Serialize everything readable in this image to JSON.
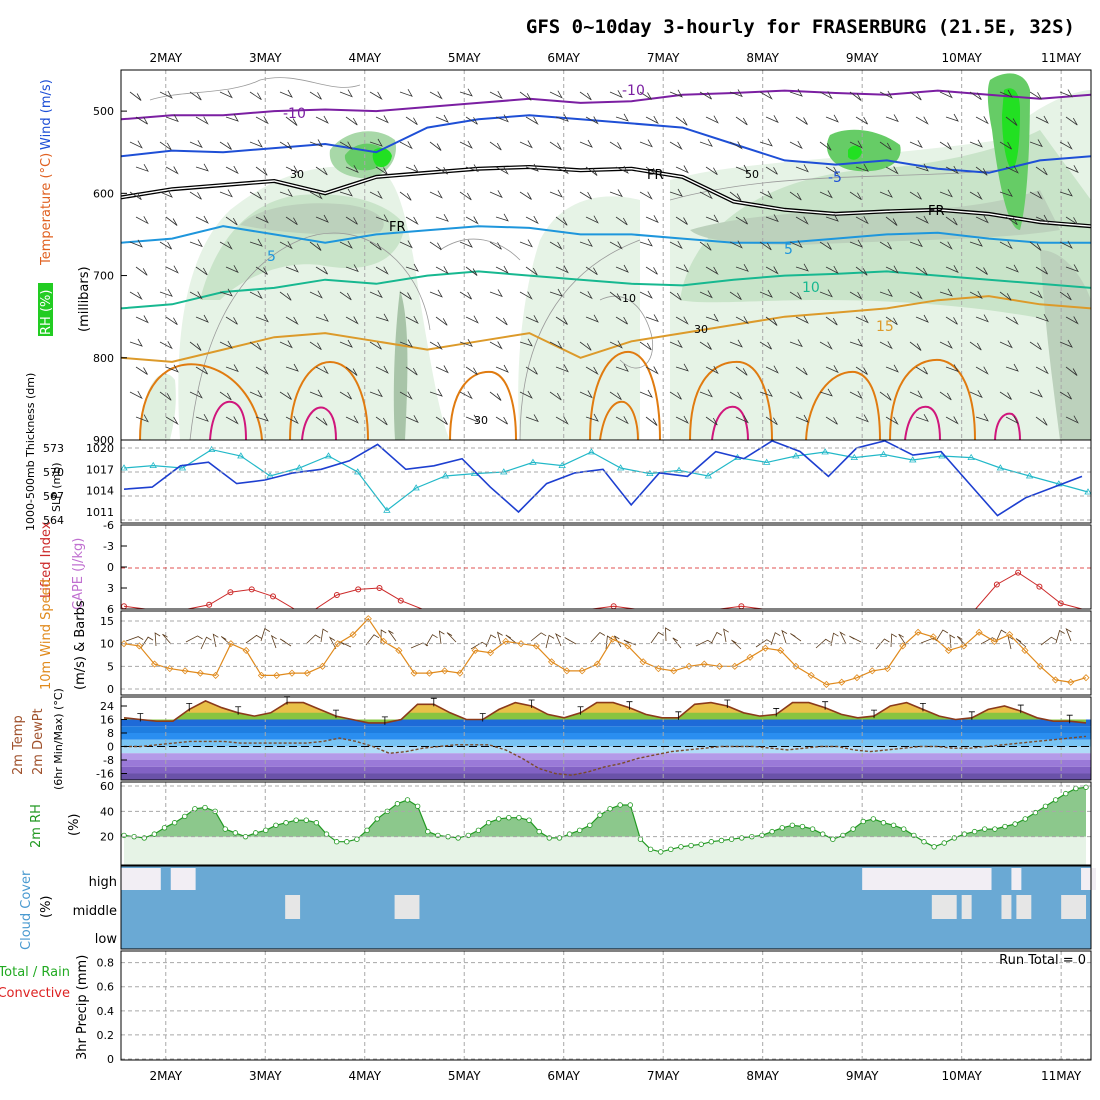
{
  "title": "GFS 0~10day 3-hourly for FRASERBURG (21.5E, 32S)",
  "colors": {
    "temp_neg10": "#7b1fa2",
    "temp_neg5": "#1e4fd6",
    "freezing": "#000000",
    "temp_5": "#1e96dc",
    "temp_10": "#17b890",
    "temp_15": "#dc9a2a",
    "temp_20": "#e07b10",
    "temp_25": "#d0167c",
    "rh_light": "#e6f3e6",
    "rh_mid": "#a8d8a8",
    "rh_dark": "#22cc22",
    "thickness": "#22b8c8",
    "slp": "#1d3fd0",
    "cape": "#cc2a2a",
    "wind": "#e08a1c",
    "cloud": "#6aa9d4",
    "rh2m": "#229922"
  },
  "chart_data": {
    "type": "meteogram",
    "title": "GFS 0~10day 3-hourly for FRASERBURG (21.5E, 32S)",
    "xaxis": {
      "day_labels": [
        "2MAY",
        "3MAY",
        "4MAY",
        "5MAY",
        "6MAY",
        "7MAY",
        "8MAY",
        "9MAY",
        "10MAY",
        "11MAY"
      ],
      "xlim_days": [
        0.55,
        10.3
      ],
      "tick_days": [
        1,
        2,
        3,
        4,
        5,
        6,
        7,
        8,
        9,
        10
      ]
    },
    "panels": [
      {
        "id": "upper-air",
        "ylabel_parts": [
          "RH (%)",
          "Temperature (°C)",
          "Wind (m/s)",
          "(millibars)"
        ],
        "ylim_mb": [
          900,
          450
        ],
        "yticks": [
          "500",
          "600",
          "700",
          "800",
          "900"
        ],
        "contour_labels": [
          "-10",
          "-10",
          "-5",
          "FR",
          "FR",
          "FR",
          "5",
          "5",
          "10",
          "15"
        ],
        "rh_labels": [
          "30",
          "50",
          "10",
          "30",
          "30"
        ],
        "isotherms": [
          {
            "label": "-10",
            "mb": [
              510,
              505,
              505,
              500,
              498,
              500,
              495,
              490,
              485,
              490,
              488,
              480,
              478,
              475,
              478,
              480,
              475,
              480,
              485,
              480
            ]
          },
          {
            "label": "-5",
            "mb": [
              555,
              548,
              550,
              545,
              540,
              550,
              520,
              510,
              505,
              510,
              515,
              520,
              540,
              560,
              565,
              560,
              570,
              575,
              560,
              555
            ]
          },
          {
            "label": "FR",
            "mb": [
              605,
              595,
              590,
              585,
              600,
              580,
              575,
              570,
              568,
              572,
              570,
              580,
              610,
              620,
              625,
              622,
              620,
              625,
              635,
              640
            ]
          },
          {
            "label": "5",
            "mb": [
              660,
              655,
              640,
              650,
              660,
              650,
              645,
              640,
              642,
              650,
              650,
              655,
              660,
              660,
              655,
              650,
              648,
              655,
              660,
              660
            ]
          },
          {
            "label": "10",
            "mb": [
              740,
              735,
              720,
              715,
              705,
              710,
              700,
              695,
              700,
              705,
              710,
              712,
              705,
              700,
              698,
              695,
              700,
              705,
              710,
              715
            ]
          },
          {
            "label": "15",
            "mb": [
              800,
              805,
              790,
              775,
              770,
              780,
              790,
              780,
              770,
              800,
              780,
              770,
              760,
              750,
              745,
              740,
              730,
              725,
              735,
              740
            ]
          }
        ]
      },
      {
        "id": "thickness-slp",
        "ylabel_parts": [
          "1000-500mb Thickness (dm)",
          "SLP (mb)"
        ],
        "left_ticks": [
          "573",
          "570",
          "567",
          "564"
        ],
        "right_ticks": [
          "1020",
          "1017",
          "1014",
          "1011"
        ],
        "series": [
          {
            "name": "1000-500mb Thickness (dm)",
            "values": [
              570.5,
              570.8,
              570.5,
              572.8,
              572.0,
              569.5,
              570.5,
              572.0,
              570.0,
              565.2,
              568.0,
              569.5,
              569.8,
              570.0,
              571.2,
              570.8,
              572.5,
              570.5,
              569.8,
              570.2,
              569.5,
              571.8,
              571.2,
              572.0,
              572.5,
              571.8,
              572.2,
              571.5,
              572.0,
              571.8,
              570.5,
              569.5,
              568.5,
              567.5
            ]
          },
          {
            "name": "SLP (mb)",
            "values": [
              1014.2,
              1014.5,
              1017.5,
              1018.0,
              1015.0,
              1015.5,
              1016.5,
              1017.0,
              1018.2,
              1020.5,
              1017.0,
              1017.5,
              1018.5,
              1014.5,
              1011.0,
              1015.0,
              1016.5,
              1017.0,
              1012.0,
              1016.5,
              1016.0,
              1019.5,
              1018.5,
              1021.0,
              1019.5,
              1016.0,
              1020.0,
              1021.0,
              1019.0,
              1019.5,
              1015.0,
              1010.5,
              1013.0,
              1014.5,
              1016.0
            ]
          }
        ]
      },
      {
        "id": "cape-li",
        "ylabel_parts": [
          "Lifted Index",
          "CAPE (J/kg)"
        ],
        "yticks": [
          "-6",
          "-3",
          "0",
          "3",
          "6"
        ],
        "series": [
          {
            "name": "Lifted Index",
            "values": [
              5.6,
              6.0,
              6.0,
              6.0,
              5.4,
              3.6,
              3.2,
              4.2,
              6.0,
              6.0,
              4.0,
              3.2,
              3.0,
              4.8,
              6.0,
              6.0,
              6.0,
              6.0,
              6.0,
              6.0,
              6.0,
              6.0,
              6.0,
              5.6,
              6.0,
              6.0,
              6.0,
              6.0,
              6.0,
              5.6,
              6.0,
              6.0,
              6.0,
              6.0,
              6.0,
              6.0,
              6.0,
              6.0,
              6.0,
              6.0,
              6.0,
              2.5,
              0.8,
              2.8,
              5.2,
              6.0
            ]
          }
        ]
      },
      {
        "id": "wind10m",
        "ylabel_parts": [
          "10m Wind Speed",
          "(m/s) & Barbs"
        ],
        "yticks": [
          "15",
          "10",
          "5",
          "0"
        ],
        "series": [
          {
            "name": "10m Wind Speed",
            "values": [
              10.0,
              9.5,
              5.5,
              4.5,
              4.0,
              3.5,
              3.0,
              10.0,
              8.5,
              3.0,
              3.0,
              3.5,
              3.5,
              5.0,
              10.0,
              12.0,
              15.5,
              10.5,
              8.5,
              3.5,
              3.5,
              4.0,
              3.5,
              8.5,
              8.0,
              10.5,
              10.0,
              9.5,
              6.0,
              4.0,
              4.0,
              5.5,
              11.0,
              9.5,
              6.0,
              4.5,
              4.0,
              5.0,
              5.5,
              5.0,
              5.0,
              7.0,
              9.0,
              8.5,
              5.0,
              3.0,
              1.0,
              1.5,
              2.5,
              4.0,
              4.5,
              9.5,
              12.5,
              11.5,
              8.5,
              9.5,
              12.5,
              10.5,
              12.0,
              8.5,
              5.0,
              2.0,
              1.5,
              2.5
            ]
          }
        ]
      },
      {
        "id": "temp2m",
        "ylabel_parts": [
          "2m Temp",
          "2m DewPt",
          "(6hr Min/Max) (°C)"
        ],
        "yticks": [
          "24",
          "16",
          "8",
          "0",
          "-8",
          "-16"
        ],
        "series": [
          {
            "name": "2m Temp",
            "values": [
              17,
              16,
              15,
              15,
              22,
              27,
              23,
              20,
              18,
              20,
              26,
              26,
              22,
              18,
              16,
              14,
              14,
              16,
              25,
              25,
              20,
              16,
              16,
              22,
              26,
              24,
              19,
              17,
              20,
              26,
              26,
              23,
              19,
              17,
              17,
              25,
              26,
              24,
              20,
              18,
              19,
              26,
              26,
              23,
              19,
              17,
              18,
              24,
              26,
              22,
              18,
              16,
              17,
              22,
              24,
              21,
              17,
              15,
              15,
              14
            ]
          },
          {
            "name": "2m DewPt",
            "values": [
              0,
              0,
              1,
              2,
              3,
              3,
              3,
              2,
              2,
              2,
              2,
              2,
              3,
              5,
              3,
              0,
              -4,
              -3,
              -1,
              0,
              1,
              1,
              1,
              -2,
              -7,
              -13,
              -16,
              -17,
              -15,
              -12,
              -10,
              -7,
              -5,
              -3,
              -2,
              -1,
              0,
              0,
              0,
              -1,
              -2,
              -1,
              0,
              0,
              -2,
              -3,
              -2,
              -1,
              0,
              0,
              -1,
              -1,
              0,
              1,
              2,
              3,
              4,
              5,
              6
            ]
          }
        ]
      },
      {
        "id": "rh2m",
        "ylabel_parts": [
          "2m RH",
          "(%)"
        ],
        "yticks": [
          "60",
          "40",
          "20"
        ],
        "series": [
          {
            "name": "2m RH",
            "values": [
              21,
              20,
              19,
              22,
              27,
              31,
              36,
              42,
              43,
              40,
              26,
              23,
              20,
              23,
              25,
              29,
              31,
              33,
              33,
              31,
              22,
              16,
              16,
              18,
              25,
              34,
              40,
              46,
              49,
              44,
              24,
              21,
              20,
              19,
              21,
              25,
              31,
              34,
              35,
              35,
              33,
              24,
              19,
              19,
              22,
              25,
              29,
              37,
              42,
              45,
              45,
              18,
              10,
              8,
              10,
              12,
              13,
              14,
              16,
              17,
              18,
              19,
              20,
              21,
              24,
              27,
              29,
              28,
              26,
              22,
              18,
              21,
              26,
              32,
              34,
              31,
              29,
              26,
              21,
              16,
              12,
              15,
              19,
              22,
              24,
              26,
              26,
              28,
              30,
              34,
              39,
              44,
              49,
              54,
              58,
              59
            ]
          }
        ]
      },
      {
        "id": "cloud",
        "ylabel_parts": [
          "Cloud Cover",
          "(%)"
        ],
        "yticks": [
          "high",
          "middle",
          "low"
        ],
        "high_segments": [
          [
            0.55,
            0.95
          ],
          [
            1.05,
            1.3
          ],
          [
            8.0,
            8.25
          ],
          [
            8.15,
            9.3
          ],
          [
            9.5,
            9.6
          ],
          [
            10.2,
            10.35
          ]
        ],
        "middle_segments": [
          [
            2.2,
            2.35
          ],
          [
            3.3,
            3.55
          ],
          [
            8.7,
            8.95
          ],
          [
            9.0,
            9.1
          ],
          [
            9.4,
            9.5
          ],
          [
            9.55,
            9.7
          ],
          [
            10.0,
            10.25
          ]
        ]
      },
      {
        "id": "precip",
        "ylabel_parts": [
          "Total / Rain",
          "Convective",
          "3hr Precip (mm)"
        ],
        "yticks": [
          "0.8",
          "0.6",
          "0.4",
          "0.2",
          "0"
        ],
        "run_total": "Run Total = 0",
        "series": [
          {
            "name": "Total / Rain",
            "values": []
          },
          {
            "name": "Convective",
            "values": []
          }
        ]
      }
    ]
  }
}
